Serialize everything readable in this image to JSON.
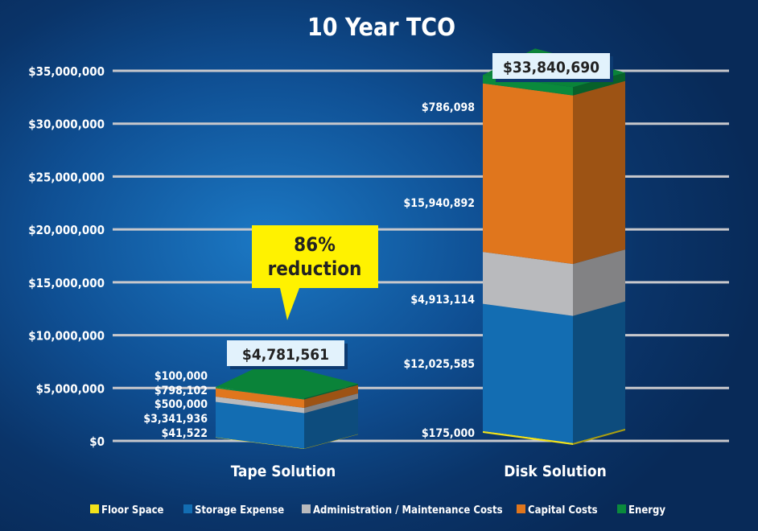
{
  "chart_data": {
    "type": "stacked-bar-3d",
    "title": "10 Year TCO",
    "categories": [
      "Tape Solution",
      "Disk Solution"
    ],
    "ylim": [
      0,
      35000000
    ],
    "yticks": [
      "$0",
      "$5,000,000",
      "$10,000,000",
      "$15,000,000",
      "$20,000,000",
      "$25,000,000",
      "$30,000,000",
      "$35,000,000"
    ],
    "grid": true,
    "legend_position": "bottom",
    "series": [
      {
        "name": "Floor Space",
        "color": "#f2e21a",
        "values": [
          41522,
          175000
        ],
        "labels": [
          "$41,522",
          "$175,000"
        ]
      },
      {
        "name": "Storage Expense",
        "color": "#136db2",
        "values": [
          3341936,
          12025585
        ],
        "labels": [
          "$3,341,936",
          "$12,025,585"
        ]
      },
      {
        "name": "Administration / Maintenance Costs",
        "color": "#b9babd",
        "values": [
          500000,
          4913114
        ],
        "labels": [
          "$500,000",
          "$4,913,114"
        ]
      },
      {
        "name": "Capital Costs",
        "color": "#e0761d",
        "values": [
          798102,
          15940892
        ],
        "labels": [
          "$798,102",
          "$15,940,892"
        ]
      },
      {
        "name": "Energy",
        "color": "#0a8a3c",
        "values": [
          100000,
          786098
        ],
        "labels": [
          "$100,000",
          "$786,098"
        ]
      }
    ],
    "totals": [
      "$4,781,561",
      "$33,840,690"
    ],
    "annotation": {
      "line1": "86%",
      "line2": "reduction"
    }
  }
}
